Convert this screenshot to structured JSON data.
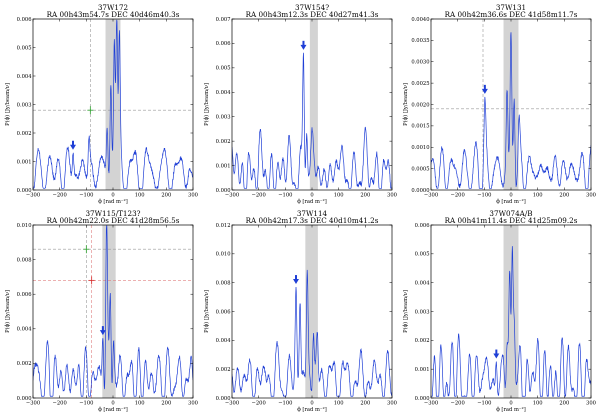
{
  "figure": {
    "common": {
      "xlabel": "ϕ [rad m⁻²]",
      "ylabel": "P(ϕ) [Jy/beam/ν]",
      "xlim": [
        -300,
        300
      ],
      "xticks": [
        "−300",
        "−200",
        "−100",
        "0",
        "100",
        "200",
        "300"
      ],
      "colors": {
        "line": "#1f3fd6",
        "band": "#d3d3d3",
        "dash": "#9a9a9a",
        "dash_red": "#e08080",
        "green": "#2ca02c",
        "red": "#d62728"
      }
    }
  },
  "chart_data": [
    {
      "type": "line",
      "title": "37W172",
      "subtitle": "RA  00h43m54.7s  DEC  40d46m40.3s",
      "ylim": [
        0,
        0.006
      ],
      "yticks": [
        "0.000",
        "0.001",
        "0.002",
        "0.003",
        "0.004",
        "0.005",
        "0.006"
      ],
      "band": [
        -28,
        28
      ],
      "hline": 0.0028,
      "vline": -85,
      "peaks": [
        [
          -22,
          0.0025
        ],
        [
          -8,
          0.0038
        ],
        [
          5,
          0.0054
        ],
        [
          14,
          0.006
        ],
        [
          24,
          0.0047
        ],
        [
          -150,
          0.0016
        ],
        [
          -90,
          0.0018
        ]
      ],
      "arrows": [
        -150
      ],
      "markers": [
        {
          "phi": -85,
          "y": 0.0028,
          "color": "green"
        }
      ]
    },
    {
      "type": "line",
      "title": "37W154?",
      "subtitle": "RA  00h43m12.3s  DEC  40d27m41.3s",
      "ylim": [
        0,
        0.007
      ],
      "yticks": [
        "0.000",
        "0.001",
        "0.002",
        "0.003",
        "0.004",
        "0.005",
        "0.006",
        "0.007"
      ],
      "band": [
        -8,
        22
      ],
      "peaks": [
        [
          -32,
          0.0062
        ],
        [
          -20,
          0.0025
        ],
        [
          0,
          0.0012
        ],
        [
          12,
          0.0008
        ]
      ],
      "arrows": [
        -32
      ],
      "markers": []
    },
    {
      "type": "line",
      "title": "37W131",
      "subtitle": "RA  00h42m36.6s  DEC  41d58m11.7s",
      "ylim": [
        0,
        0.004
      ],
      "yticks": [
        "0.0000",
        "0.0005",
        "0.0010",
        "0.0015",
        "0.0020",
        "0.0025",
        "0.0030",
        "0.0035",
        "0.0040"
      ],
      "band": [
        -28,
        28
      ],
      "hline": 0.0019,
      "vline": -105,
      "peaks": [
        [
          -98,
          0.0015
        ],
        [
          -15,
          0.0022
        ],
        [
          0,
          0.0035
        ],
        [
          12,
          0.0025
        ],
        [
          30,
          0.0012
        ]
      ],
      "arrows": [
        -98
      ],
      "markers": []
    },
    {
      "type": "line",
      "title": "37W115/T123?",
      "subtitle": "RA  00h42m22.0s  DEC  41d28m56.5s",
      "ylim": [
        0,
        0.01
      ],
      "yticks": [
        "0.000",
        "0.002",
        "0.004",
        "0.006",
        "0.008",
        "0.010"
      ],
      "band": [
        -40,
        10
      ],
      "hline": 0.0086,
      "hline2": 0.0068,
      "vline": -100,
      "vline2": -80,
      "peaks": [
        [
          -38,
          0.0048
        ],
        [
          -24,
          0.0094
        ],
        [
          -10,
          0.0064
        ],
        [
          2,
          0.0035
        ]
      ],
      "arrows": [
        -38
      ],
      "markers": [
        {
          "phi": -100,
          "y": 0.0086,
          "color": "green"
        },
        {
          "phi": -80,
          "y": 0.0068,
          "color": "red"
        }
      ]
    },
    {
      "type": "line",
      "title": "37W114",
      "subtitle": "RA  00h42m17.3s  DEC  40d10m41.2s",
      "ylim": [
        0,
        0.012
      ],
      "yticks": [
        "0.000",
        "0.002",
        "0.004",
        "0.006",
        "0.008",
        "0.010",
        "0.012"
      ],
      "band": [
        -25,
        22
      ],
      "peaks": [
        [
          -60,
          0.0068
        ],
        [
          -45,
          0.0078
        ],
        [
          -18,
          0.0084
        ],
        [
          5,
          0.0052
        ],
        [
          20,
          0.0042
        ]
      ],
      "arrows": [
        -60
      ],
      "markers": []
    },
    {
      "type": "line",
      "title": "37W074A/B",
      "subtitle": "RA  00h41m11.4s  DEC  41d25m09.2s",
      "ylim": [
        0,
        0.006
      ],
      "yticks": [
        "0.000",
        "0.001",
        "0.002",
        "0.003",
        "0.004",
        "0.005",
        "0.006"
      ],
      "band": [
        -28,
        28
      ],
      "peaks": [
        [
          -55,
          0.002
        ],
        [
          -15,
          0.0023
        ],
        [
          -5,
          0.0036
        ],
        [
          5,
          0.0052
        ],
        [
          12,
          0.0028
        ]
      ],
      "arrows": [
        -55
      ],
      "markers": []
    }
  ]
}
